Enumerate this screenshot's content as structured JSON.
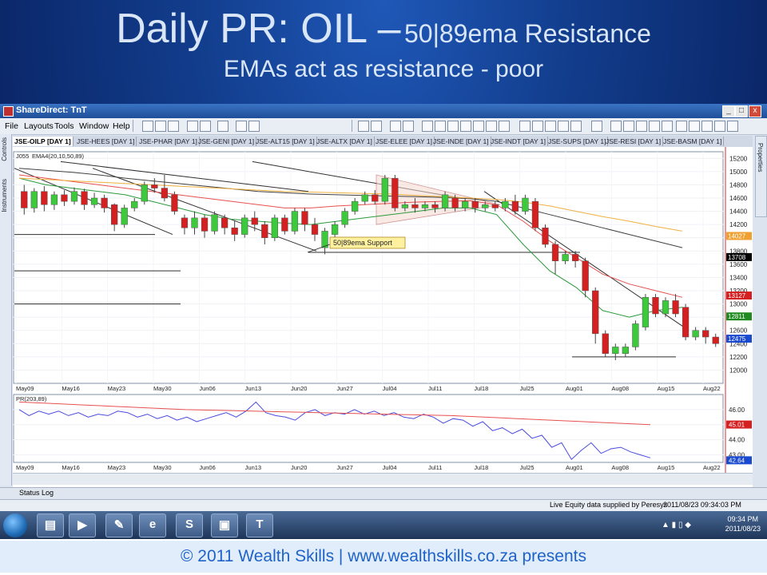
{
  "slide": {
    "title_main": "Daily PR: OIL –",
    "title_rest": "50|89ema Resistance",
    "subtitle": "EMAs act as resistance - poor",
    "footer": "© 2011 Wealth Skills | www.wealthskills.co.za presents"
  },
  "window": {
    "title": "ShareDirect: TnT",
    "minimize": "_",
    "maximize": "□",
    "close": "x"
  },
  "menu": [
    "File",
    "Layouts",
    "Tools",
    "Window",
    "Help"
  ],
  "sidebar": {
    "controls": "Controls",
    "instruments": "Instruments",
    "properties": "Properties"
  },
  "tabs": [
    "JSE-OILP [DAY 1]",
    "JSE-HEES [DAY 1]",
    "JSE-PHAR [DAY 1]",
    "JSE-GENI [DAY 1]",
    "JSE-ALT15 [DAY 1]",
    "JSE-ALTX [DAY 1]",
    "JSE-ELEE [DAY 1]",
    "JSE-INDE [DAY 1]",
    "JSE-INDT [DAY 1]",
    "JSE-SUPS [DAY 1]",
    "JSE-RESI [DAY 1]",
    "JSE-BASM [DAY 1]"
  ],
  "status_log": "Status Log",
  "status": {
    "data_supplier": "Live Equity data supplied by Peresys",
    "timestamp": "2011/08/23 09:34:03 PM"
  },
  "clock": {
    "time": "09:34 PM",
    "date": "2011/08/23"
  },
  "colors": {
    "up_candle": "#3cc93c",
    "down_candle": "#d42020",
    "ema20": "#2a9a3a",
    "ema10": "#e85050",
    "ema50": "#404040",
    "ema89": "#f0b040",
    "pr_line": "#4a4ae0",
    "pr_signal": "#e85050"
  },
  "chart_data": [
    {
      "type": "candlestick",
      "instrument": "J055",
      "indicator_label": "EMA4(20,10,50,89)",
      "ylim": [
        11800,
        15300
      ],
      "y_ticks": [
        15200,
        15000,
        14800,
        14600,
        14400,
        14200,
        14000,
        13800,
        13600,
        13400,
        13200,
        13000,
        12800,
        12600,
        12400,
        12200,
        12000
      ],
      "x_labels": [
        "May09",
        "May16",
        "May23",
        "May30",
        "Jun06",
        "Jun13",
        "Jun20",
        "Jun27",
        "Jul04",
        "Jul11",
        "Jul18",
        "Jul25",
        "Aug01",
        "Aug08",
        "Aug15",
        "Aug22"
      ],
      "candles": [
        {
          "o": 14700,
          "c": 14450,
          "h": 14800,
          "l": 14350
        },
        {
          "o": 14450,
          "c": 14700,
          "h": 14750,
          "l": 14380
        },
        {
          "o": 14700,
          "c": 14500,
          "h": 14780,
          "l": 14400
        },
        {
          "o": 14500,
          "c": 14650,
          "h": 14700,
          "l": 14420
        },
        {
          "o": 14650,
          "c": 14550,
          "h": 14720,
          "l": 14480
        },
        {
          "o": 14550,
          "c": 14700,
          "h": 14760,
          "l": 14500
        },
        {
          "o": 14700,
          "c": 14500,
          "h": 14740,
          "l": 14420
        },
        {
          "o": 14500,
          "c": 14600,
          "h": 14680,
          "l": 14450
        },
        {
          "o": 14600,
          "c": 14450,
          "h": 14650,
          "l": 14380
        },
        {
          "o": 14500,
          "c": 14200,
          "h": 14520,
          "l": 14100
        },
        {
          "o": 14200,
          "c": 14450,
          "h": 14500,
          "l": 14150
        },
        {
          "o": 14450,
          "c": 14550,
          "h": 14600,
          "l": 14400
        },
        {
          "o": 14550,
          "c": 14800,
          "h": 14850,
          "l": 14500
        },
        {
          "o": 14800,
          "c": 14750,
          "h": 14900,
          "l": 14680
        },
        {
          "o": 14750,
          "c": 14600,
          "h": 14950,
          "l": 14550
        },
        {
          "o": 14650,
          "c": 14400,
          "h": 14700,
          "l": 14350
        },
        {
          "o": 14300,
          "c": 14150,
          "h": 14350,
          "l": 14050
        },
        {
          "o": 14150,
          "c": 14300,
          "h": 14400,
          "l": 14050
        },
        {
          "o": 14300,
          "c": 14100,
          "h": 14350,
          "l": 14000
        },
        {
          "o": 14100,
          "c": 14350,
          "h": 14400,
          "l": 14050
        },
        {
          "o": 14300,
          "c": 14150,
          "h": 14350,
          "l": 14050
        },
        {
          "o": 14150,
          "c": 14050,
          "h": 14250,
          "l": 13950
        },
        {
          "o": 14050,
          "c": 14300,
          "h": 14350,
          "l": 14000
        },
        {
          "o": 14300,
          "c": 14200,
          "h": 14400,
          "l": 14100
        },
        {
          "o": 14200,
          "c": 14000,
          "h": 14250,
          "l": 13900
        },
        {
          "o": 14000,
          "c": 14300,
          "h": 14350,
          "l": 13950
        },
        {
          "o": 14300,
          "c": 14100,
          "h": 14350,
          "l": 14050
        },
        {
          "o": 14100,
          "c": 14400,
          "h": 14450,
          "l": 14050
        },
        {
          "o": 14400,
          "c": 14200,
          "h": 14450,
          "l": 14100
        },
        {
          "o": 14200,
          "c": 14050,
          "h": 14300,
          "l": 13950
        },
        {
          "o": 13850,
          "c": 14100,
          "h": 14150,
          "l": 13750
        },
        {
          "o": 14050,
          "c": 14200,
          "h": 14250,
          "l": 14000
        },
        {
          "o": 14200,
          "c": 14400,
          "h": 14450,
          "l": 14150
        },
        {
          "o": 14400,
          "c": 14550,
          "h": 14600,
          "l": 14350
        },
        {
          "o": 14550,
          "c": 14650,
          "h": 14700,
          "l": 14500
        },
        {
          "o": 14650,
          "c": 14550,
          "h": 14720,
          "l": 14500
        },
        {
          "o": 14550,
          "c": 14900,
          "h": 14950,
          "l": 14500
        },
        {
          "o": 14900,
          "c": 14450,
          "h": 14950,
          "l": 14400
        },
        {
          "o": 14450,
          "c": 14500,
          "h": 14550,
          "l": 14400
        },
        {
          "o": 14500,
          "c": 14450,
          "h": 14600,
          "l": 14380
        },
        {
          "o": 14450,
          "c": 14500,
          "h": 14550,
          "l": 14400
        },
        {
          "o": 14500,
          "c": 14450,
          "h": 14550,
          "l": 14380
        },
        {
          "o": 14450,
          "c": 14650,
          "h": 14700,
          "l": 14400
        },
        {
          "o": 14600,
          "c": 14450,
          "h": 14650,
          "l": 14400
        },
        {
          "o": 14450,
          "c": 14550,
          "h": 14600,
          "l": 14400
        },
        {
          "o": 14550,
          "c": 14450,
          "h": 14600,
          "l": 14380
        },
        {
          "o": 14450,
          "c": 14500,
          "h": 14550,
          "l": 14400
        },
        {
          "o": 14500,
          "c": 14450,
          "h": 14550,
          "l": 14400
        },
        {
          "o": 14450,
          "c": 14550,
          "h": 14600,
          "l": 14400
        },
        {
          "o": 14550,
          "c": 14400,
          "h": 14650,
          "l": 14350
        },
        {
          "o": 14400,
          "c": 14600,
          "h": 14650,
          "l": 14350
        },
        {
          "o": 14550,
          "c": 14150,
          "h": 14600,
          "l": 14100
        },
        {
          "o": 14150,
          "c": 13900,
          "h": 14200,
          "l": 13850
        },
        {
          "o": 13900,
          "c": 13650,
          "h": 13950,
          "l": 13450
        },
        {
          "o": 13650,
          "c": 13750,
          "h": 13800,
          "l": 13600
        },
        {
          "o": 13750,
          "c": 13650,
          "h": 13800,
          "l": 13550
        },
        {
          "o": 13650,
          "c": 13200,
          "h": 13700,
          "l": 13100
        },
        {
          "o": 13200,
          "c": 12550,
          "h": 13250,
          "l": 12400
        },
        {
          "o": 12550,
          "c": 12250,
          "h": 12600,
          "l": 12200
        },
        {
          "o": 12250,
          "c": 12350,
          "h": 12400,
          "l": 12150
        },
        {
          "o": 12250,
          "c": 12350,
          "h": 12400,
          "l": 12200
        },
        {
          "o": 12350,
          "c": 12700,
          "h": 12750,
          "l": 12300
        },
        {
          "o": 12650,
          "c": 13100,
          "h": 13150,
          "l": 12600
        },
        {
          "o": 13100,
          "c": 12850,
          "h": 13150,
          "l": 12800
        },
        {
          "o": 12850,
          "c": 13050,
          "h": 13100,
          "l": 12800
        },
        {
          "o": 13050,
          "c": 12850,
          "h": 13150,
          "l": 12800
        },
        {
          "o": 12950,
          "c": 12500,
          "h": 13000,
          "l": 12450
        },
        {
          "o": 12500,
          "c": 12600,
          "h": 12650,
          "l": 12450
        },
        {
          "o": 12600,
          "c": 12500,
          "h": 12650,
          "l": 12400
        },
        {
          "o": 12500,
          "c": 12400,
          "h": 12550,
          "l": 12350
        }
      ],
      "series": [
        {
          "name": "EMA 20",
          "values": [
            14900,
            14800,
            14750,
            14700,
            14650,
            14550,
            14450,
            14350,
            14280,
            14250,
            14220,
            14200,
            14250,
            14300,
            14350,
            14400,
            14450,
            14450,
            14350,
            13900,
            13500,
            13250,
            12900,
            12800,
            12900,
            12950
          ]
        },
        {
          "name": "EMA 10",
          "values": [
            14950,
            14900,
            14850,
            14800,
            14750,
            14700,
            14650,
            14600,
            14550,
            14500,
            14450,
            14450,
            14480,
            14500,
            14520,
            14540,
            14550,
            14560,
            14500,
            14250,
            13950,
            13700,
            13450,
            13300,
            13200,
            13100
          ]
        },
        {
          "name": "EMA 50",
          "values": [
            15050,
            15020,
            14990,
            14950,
            14900,
            14860,
            14820,
            14780,
            14740,
            14700,
            14680,
            14660,
            14650,
            14640,
            14630,
            14620,
            14610,
            14590,
            14550,
            14450,
            14350,
            14250,
            14150,
            14050,
            13950,
            13850
          ]
        },
        {
          "name": "EMA 89",
          "values": [
            14900,
            14880,
            14860,
            14840,
            14820,
            14800,
            14780,
            14760,
            14740,
            14720,
            14700,
            14690,
            14680,
            14670,
            14660,
            14640,
            14620,
            14600,
            14580,
            14540,
            14480,
            14400,
            14320,
            14250,
            14170,
            14100
          ]
        }
      ],
      "price_labels": [
        {
          "value": "14027",
          "color": "#f0a030"
        },
        {
          "value": "13708",
          "color": "#000000"
        },
        {
          "value": "13127",
          "color": "#d42020"
        },
        {
          "value": "12811",
          "color": "#208a20"
        },
        {
          "value": "12475",
          "color": "#1a4ad0"
        }
      ],
      "annotation": "50|89ema Support"
    },
    {
      "type": "line",
      "indicator_label": "PR(203,89)",
      "ylim": [
        42.5,
        47.0
      ],
      "y_ticks": [
        46.0,
        45.0,
        44.0,
        43.0
      ],
      "x_labels": [
        "May09",
        "May16",
        "May23",
        "May30",
        "Jun06",
        "Jun13",
        "Jun20",
        "Jun27",
        "Jul04",
        "Jul11",
        "Jul18",
        "Jul25",
        "Aug01",
        "Aug08",
        "Aug15",
        "Aug22"
      ],
      "series": [
        {
          "name": "PR",
          "values": [
            46.0,
            45.6,
            45.9,
            45.7,
            45.9,
            45.6,
            45.8,
            45.5,
            45.7,
            45.6,
            45.9,
            45.8,
            45.5,
            45.7,
            45.4,
            45.6,
            45.3,
            45.5,
            45.2,
            45.4,
            45.6,
            45.8,
            45.5,
            45.9,
            46.5,
            45.8,
            45.6,
            45.5,
            45.3,
            45.8,
            46.0,
            45.6,
            45.8,
            45.7,
            46.0,
            45.7,
            45.9,
            45.6,
            45.8,
            45.5,
            45.4,
            45.7,
            45.5,
            45.1,
            45.4,
            45.3,
            44.9,
            45.2,
            44.6,
            44.8,
            44.4,
            44.7,
            44.1,
            44.3,
            43.5,
            43.8,
            42.7,
            43.3,
            43.8,
            43.1,
            43.4,
            43.5,
            43.2,
            43.0,
            42.8
          ]
        },
        {
          "name": "PR signal",
          "values": [
            46.5,
            46.4,
            46.3,
            46.2,
            46.1,
            46.0,
            45.95,
            45.9,
            45.85,
            45.8,
            45.75,
            45.7,
            45.65,
            45.6,
            45.5,
            45.4,
            45.3,
            45.2,
            45.1,
            45.0
          ]
        }
      ],
      "price_labels": [
        {
          "value": "46.00",
          "color": "#000000"
        },
        {
          "value": "45.01",
          "color": "#d42020"
        },
        {
          "value": "44.00",
          "color": "#000000"
        },
        {
          "value": "43.00",
          "color": "#000000"
        },
        {
          "value": "42.64",
          "color": "#1a4ad0"
        }
      ]
    }
  ]
}
